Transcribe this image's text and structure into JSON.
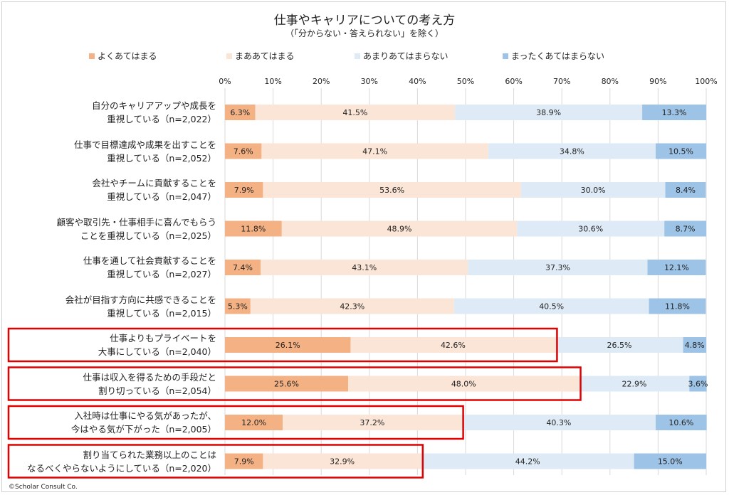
{
  "chart_data": {
    "type": "bar",
    "stacked": true,
    "orientation": "horizontal",
    "title": "仕事やキャリアについての考え方",
    "subtitle": "（「分からない・答えられない」を除く）",
    "xlim": [
      0,
      100
    ],
    "x_ticks": [
      "0%",
      "10%",
      "20%",
      "30%",
      "40%",
      "50%",
      "60%",
      "70%",
      "80%",
      "90%",
      "100%"
    ],
    "grid": true,
    "legend_position": "top",
    "categories": [
      [
        "自分のキャリアアップや成長を",
        "重視している（n=2,022）"
      ],
      [
        "仕事で目標達成や成果を出すことを",
        "重視している（n=2,052）"
      ],
      [
        "会社やチームに貢献することを",
        "重視している（n=2,047）"
      ],
      [
        "顧客や取引先・仕事相手に喜んでもらう",
        "ことを重視している（n=2,025）"
      ],
      [
        "仕事を通して社会貢献することを",
        "重視している（n=2,027）"
      ],
      [
        "会社が目指す方向に共感できることを",
        "重視している（n=2,015）"
      ],
      [
        "仕事よりもプライベートを",
        "大事にしている（n=2,040）"
      ],
      [
        "仕事は収入を得るための手段だと",
        "割り切っている（n=2,054）"
      ],
      [
        "入社時は仕事にやる気があったが、",
        "今はやる気が下がった（n=2,005）"
      ],
      [
        "割り当てられた業務以上のことは",
        "なるべくやらないようにしている（n=2,020）"
      ]
    ],
    "highlighted_rows": [
      6,
      7,
      8,
      9
    ],
    "series": [
      {
        "name": "よくあてはまる",
        "color": "#f4b183",
        "values": [
          6.3,
          7.6,
          7.9,
          11.8,
          7.4,
          5.3,
          26.1,
          25.6,
          12.0,
          7.9
        ]
      },
      {
        "name": "まああてはまる",
        "color": "#fbe5d6",
        "values": [
          41.5,
          47.1,
          53.6,
          48.9,
          43.1,
          42.3,
          42.6,
          48.0,
          37.2,
          32.9
        ]
      },
      {
        "name": "あまりあてはまらない",
        "color": "#deebf7",
        "values": [
          38.9,
          34.8,
          30.0,
          30.6,
          37.3,
          40.5,
          26.5,
          22.9,
          40.3,
          44.2
        ]
      },
      {
        "name": "まったくあてはまらない",
        "color": "#9dc3e6",
        "values": [
          13.3,
          10.5,
          8.4,
          8.7,
          12.1,
          11.8,
          4.8,
          3.6,
          10.6,
          15.0
        ]
      }
    ]
  },
  "copyright": "©Scholar Consult Co."
}
